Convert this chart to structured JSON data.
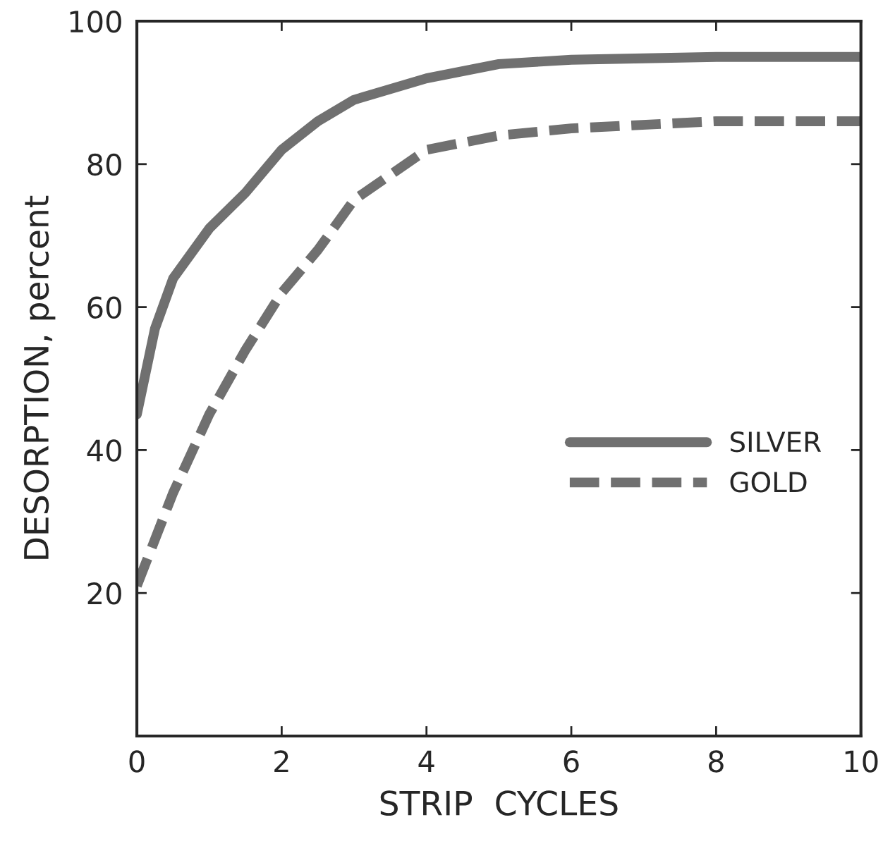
{
  "chart_data": {
    "type": "line",
    "xlabel": "STRIP  CYCLES",
    "ylabel": "DESORPTION, percent",
    "xlim": [
      0,
      10
    ],
    "xticks": [
      0,
      2,
      4,
      6,
      8,
      {
        "value": 10,
        "label": "10"
      }
    ],
    "ylim": [
      0,
      100
    ],
    "yticks": [
      20,
      40,
      60,
      80,
      100
    ],
    "grid": false,
    "legend": "right",
    "series": [
      {
        "name": "SILVER",
        "color": "#707070",
        "line_style": "solid",
        "x": [
          0,
          0.25,
          0.5,
          1,
          1.5,
          2,
          2.5,
          3,
          4,
          5,
          6,
          8,
          10
        ],
        "values": [
          45,
          57,
          64,
          71,
          76,
          82,
          86,
          89,
          92,
          94,
          94.6,
          95,
          95
        ]
      },
      {
        "name": "GOLD",
        "color": "#707070",
        "line_style": "dashed",
        "x": [
          0,
          0.5,
          1,
          1.5,
          2,
          2.5,
          3,
          4,
          5,
          6,
          8,
          10
        ],
        "values": [
          21,
          34,
          45,
          54,
          62,
          68,
          75,
          82,
          84,
          85,
          86,
          86
        ]
      }
    ]
  }
}
